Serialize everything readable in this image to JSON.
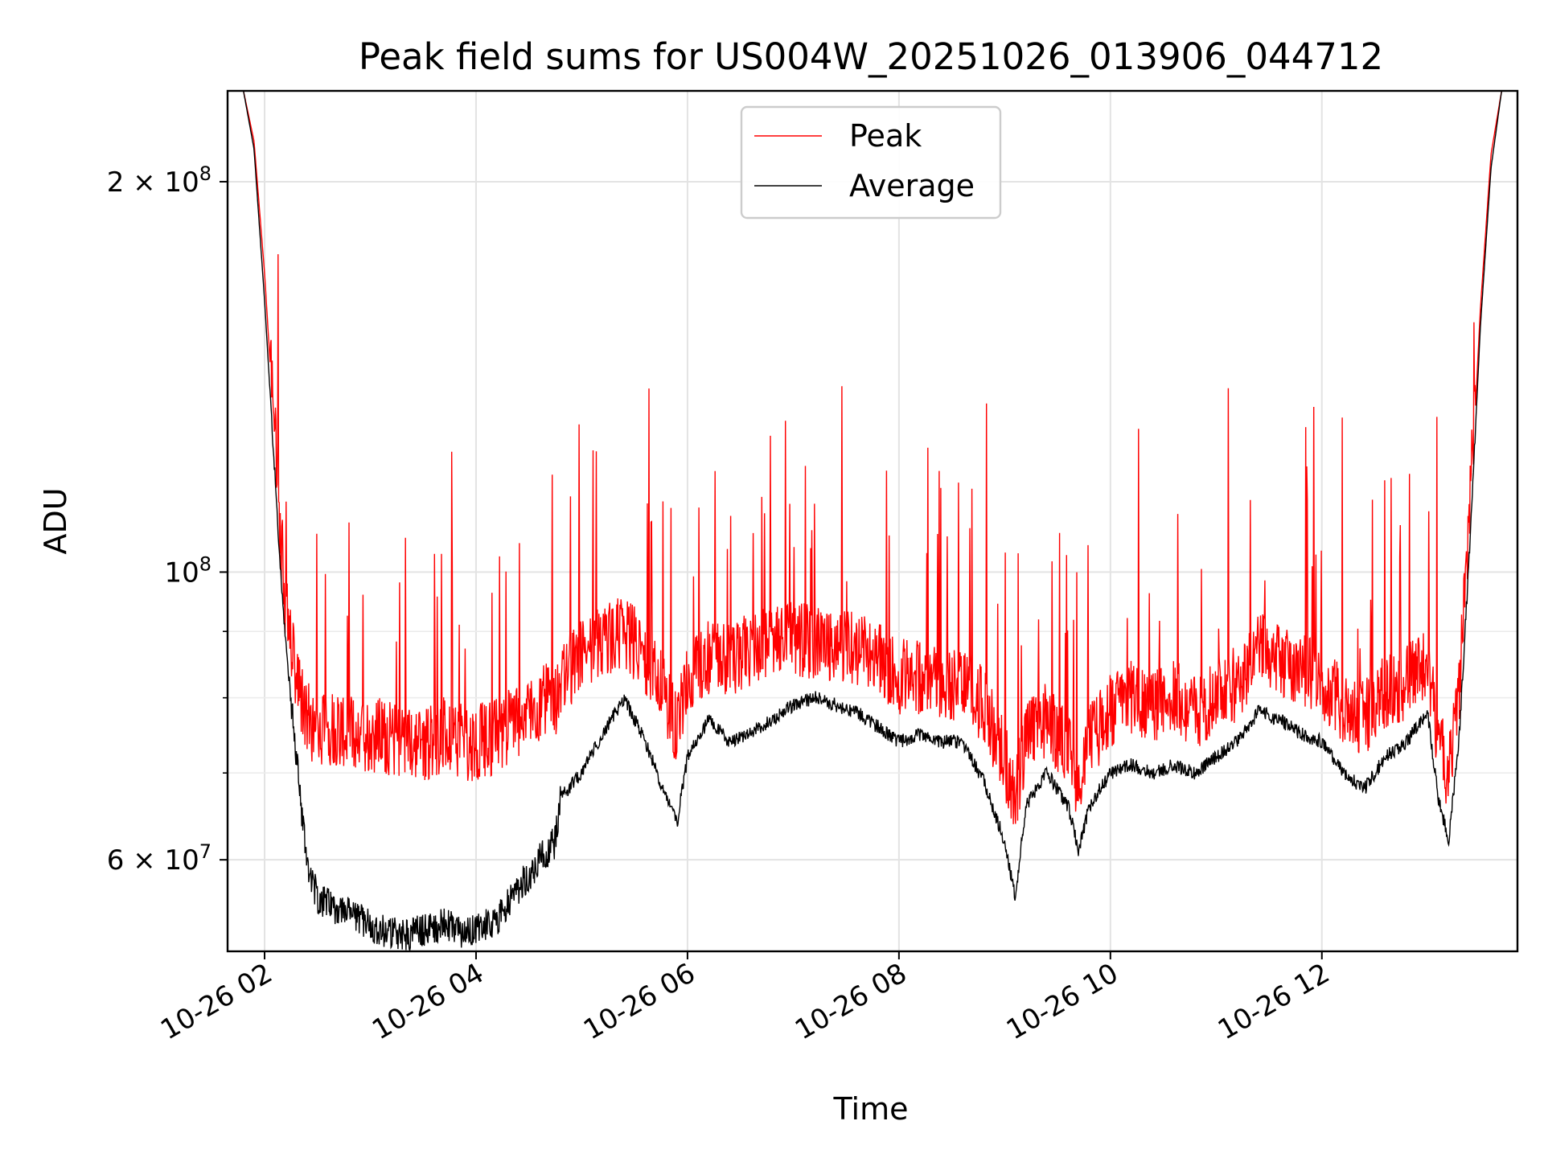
{
  "chart_data": {
    "type": "line",
    "title": "Peak field sums for US004W_20251026_013906_044712",
    "xlabel": "Time",
    "ylabel": "ADU",
    "yscale": "log",
    "ylim": [
      51000000,
      235000000
    ],
    "xlim_hours": [
      1.65,
      13.85
    ],
    "grid": true,
    "legend_position": "upper center",
    "x_ticks": [
      {
        "hour": 2,
        "label": "10-26 02"
      },
      {
        "hour": 4,
        "label": "10-26 04"
      },
      {
        "hour": 6,
        "label": "10-26 06"
      },
      {
        "hour": 8,
        "label": "10-26 08"
      },
      {
        "hour": 10,
        "label": "10-26 10"
      },
      {
        "hour": 12,
        "label": "10-26 12"
      }
    ],
    "y_major_ticks": [
      {
        "value": 60000000,
        "mantissa": "6",
        "exp": "7",
        "has_mantissa": true
      },
      {
        "value": 100000000,
        "mantissa": "",
        "exp": "8",
        "has_mantissa": false
      },
      {
        "value": 200000000,
        "mantissa": "2",
        "exp": "8",
        "has_mantissa": true
      }
    ],
    "y_minor_ticks": [
      70000000,
      80000000,
      90000000
    ],
    "series": [
      {
        "name": "Peak",
        "color": "#ff0000",
        "x_hours": [
          1.65,
          1.8,
          1.9,
          2.0,
          2.1,
          2.15,
          2.2,
          2.3,
          2.4,
          2.5,
          2.7,
          2.9,
          3.1,
          3.3,
          3.5,
          3.7,
          3.9,
          4.0,
          4.2,
          4.4,
          4.6,
          4.75,
          4.8,
          5.0,
          5.2,
          5.4,
          5.6,
          5.8,
          5.9,
          6.0,
          6.2,
          6.4,
          6.6,
          6.8,
          7.0,
          7.2,
          7.4,
          7.6,
          7.8,
          8.0,
          8.2,
          8.4,
          8.6,
          8.8,
          9.0,
          9.1,
          9.2,
          9.4,
          9.6,
          9.7,
          9.8,
          10.0,
          10.2,
          10.4,
          10.6,
          10.8,
          11.0,
          11.2,
          11.4,
          11.6,
          11.8,
          12.0,
          12.2,
          12.4,
          12.6,
          12.8,
          13.0,
          13.1,
          13.2,
          13.3,
          13.4,
          13.5,
          13.6,
          13.7,
          13.85
        ],
        "values": [
          235000000,
          235000000,
          215000000,
          170000000,
          125000000,
          105000000,
          92000000,
          80000000,
          75000000,
          74000000,
          74000000,
          73000000,
          73000000,
          72000000,
          72000000,
          73000000,
          72000000,
          72000000,
          73000000,
          75000000,
          77000000,
          78000000,
          80000000,
          84000000,
          86000000,
          88000000,
          84000000,
          78000000,
          74000000,
          80000000,
          84000000,
          83000000,
          85000000,
          86000000,
          87000000,
          86000000,
          86000000,
          85000000,
          84000000,
          81000000,
          81000000,
          80000000,
          80000000,
          77000000,
          70000000,
          65000000,
          73000000,
          75000000,
          71000000,
          67000000,
          72000000,
          76000000,
          78000000,
          77000000,
          78000000,
          76000000,
          78000000,
          80000000,
          85000000,
          83000000,
          82000000,
          80000000,
          77000000,
          75000000,
          79000000,
          80000000,
          84000000,
          72000000,
          68000000,
          80000000,
          110000000,
          160000000,
          210000000,
          235000000,
          235000000
        ]
      },
      {
        "name": "Average",
        "color": "#000000",
        "x_hours": [
          1.65,
          1.8,
          1.9,
          2.0,
          2.1,
          2.15,
          2.2,
          2.3,
          2.4,
          2.5,
          2.7,
          2.9,
          3.1,
          3.3,
          3.5,
          3.7,
          3.9,
          4.0,
          4.2,
          4.4,
          4.6,
          4.75,
          4.8,
          5.0,
          5.2,
          5.4,
          5.6,
          5.8,
          5.9,
          6.0,
          6.2,
          6.4,
          6.6,
          6.8,
          7.0,
          7.2,
          7.4,
          7.6,
          7.8,
          8.0,
          8.2,
          8.4,
          8.6,
          8.8,
          9.0,
          9.1,
          9.2,
          9.4,
          9.6,
          9.7,
          9.8,
          10.0,
          10.2,
          10.4,
          10.6,
          10.8,
          11.0,
          11.2,
          11.4,
          11.6,
          11.8,
          12.0,
          12.2,
          12.4,
          12.6,
          12.8,
          13.0,
          13.1,
          13.2,
          13.3,
          13.4,
          13.5,
          13.6,
          13.7,
          13.85
        ],
        "values": [
          235000000,
          235000000,
          212000000,
          162000000,
          118000000,
          100000000,
          88000000,
          72000000,
          60000000,
          56000000,
          55000000,
          54000000,
          53000000,
          52500000,
          53000000,
          53500000,
          52500000,
          53000000,
          54000000,
          57000000,
          60000000,
          62000000,
          67000000,
          70000000,
          75000000,
          80000000,
          74000000,
          67000000,
          64000000,
          72000000,
          77000000,
          74000000,
          75000000,
          77000000,
          79000000,
          80000000,
          79000000,
          78000000,
          76000000,
          74000000,
          75000000,
          74000000,
          74000000,
          69000000,
          62000000,
          56000000,
          66000000,
          70000000,
          66000000,
          61000000,
          66000000,
          70000000,
          71000000,
          70000000,
          71000000,
          70000000,
          72000000,
          74000000,
          78000000,
          77000000,
          75000000,
          74000000,
          70000000,
          68000000,
          72000000,
          74000000,
          78000000,
          67000000,
          62000000,
          75000000,
          105000000,
          155000000,
          205000000,
          235000000,
          235000000
        ]
      }
    ]
  }
}
